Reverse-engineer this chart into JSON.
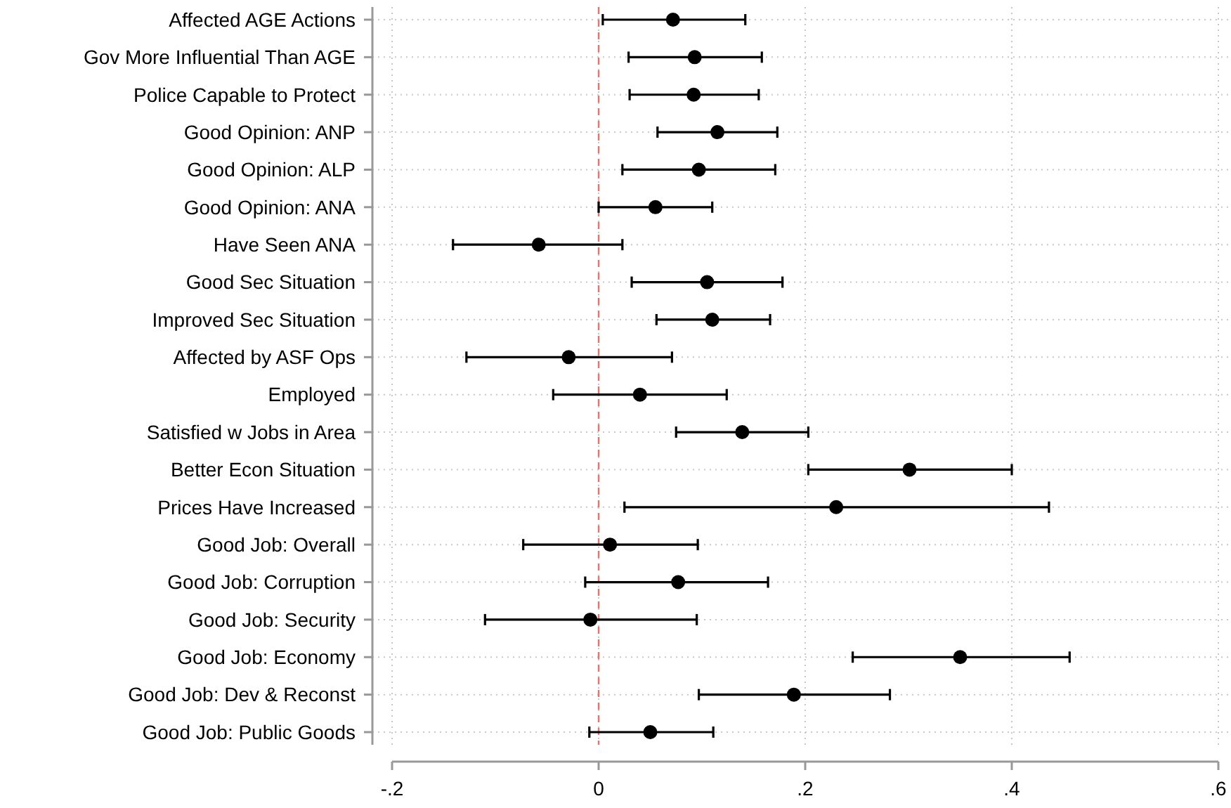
{
  "chart_data": {
    "type": "scatter",
    "orientation": "horizontal",
    "categories": [
      "Affected AGE Actions",
      "Gov More Influential Than AGE",
      "Police Capable to Protect",
      "Good Opinion: ANP",
      "Good Opinion: ALP",
      "Good Opinion: ANA",
      "Have Seen ANA",
      "Good Sec Situation",
      "Improved Sec Situation",
      "Affected by ASF Ops",
      "Employed",
      "Satisfied w Jobs in Area",
      "Better Econ Situation",
      "Prices Have Increased",
      "Good Job: Overall",
      "Good Job: Corruption",
      "Good Job: Security",
      "Good Job: Economy",
      "Good Job: Dev & Reconst",
      "Good Job: Public Goods"
    ],
    "series": [
      {
        "color": "#000000",
        "values": [
          0.072,
          0.093,
          0.092,
          0.115,
          0.097,
          0.055,
          -0.058,
          0.105,
          0.11,
          -0.029,
          0.04,
          0.139,
          0.301,
          0.23,
          0.011,
          0.077,
          -0.008,
          0.35,
          0.189,
          0.05
        ],
        "errors": [
          [
            0.004,
            0.142
          ],
          [
            0.029,
            0.158
          ],
          [
            0.03,
            0.155
          ],
          [
            0.057,
            0.173
          ],
          [
            0.023,
            0.171
          ],
          [
            0.0,
            0.11
          ],
          [
            -0.141,
            0.023
          ],
          [
            0.032,
            0.178
          ],
          [
            0.056,
            0.166
          ],
          [
            -0.128,
            0.071
          ],
          [
            -0.044,
            0.124
          ],
          [
            0.075,
            0.203
          ],
          [
            0.203,
            0.4
          ],
          [
            0.025,
            0.436
          ],
          [
            -0.073,
            0.096
          ],
          [
            -0.013,
            0.164
          ],
          [
            -0.11,
            0.095
          ],
          [
            0.246,
            0.456
          ],
          [
            0.097,
            0.282
          ],
          [
            -0.009,
            0.111
          ]
        ]
      }
    ],
    "xlim": [
      -0.2,
      0.6
    ],
    "xticks": [
      {
        "value": -0.2,
        "label": "-.2"
      },
      0,
      {
        "value": 0.2,
        "label": ".2"
      },
      {
        "value": 0.4,
        "label": ".4"
      },
      {
        "value": 0.6,
        "label": ".6"
      }
    ],
    "grid": true,
    "marker": "circle",
    "ref_lines": [
      {
        "axis": "x",
        "value": 0,
        "color": "#e8736c",
        "line_style": "dashed"
      }
    ]
  }
}
